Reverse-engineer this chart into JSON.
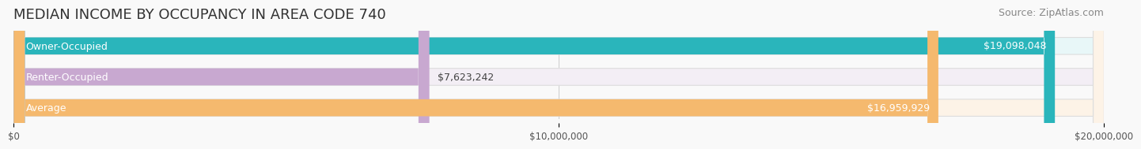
{
  "title": "MEDIAN INCOME BY OCCUPANCY IN AREA CODE 740",
  "source": "Source: ZipAtlas.com",
  "categories": [
    "Owner-Occupied",
    "Renter-Occupied",
    "Average"
  ],
  "values": [
    19098048,
    7623242,
    16959929
  ],
  "labels": [
    "$19,098,048",
    "$7,623,242",
    "$16,959,929"
  ],
  "bar_colors": [
    "#2ab5bb",
    "#c8a8d0",
    "#f5b96e"
  ],
  "bar_bg_colors": [
    "#e8f7f8",
    "#f3eef5",
    "#fdf3e7"
  ],
  "xlim": [
    0,
    20000000
  ],
  "xticks": [
    0,
    10000000,
    20000000
  ],
  "xtick_labels": [
    "$0",
    "$10,000,000",
    "$20,000,000"
  ],
  "title_fontsize": 13,
  "source_fontsize": 9,
  "label_fontsize": 9,
  "category_fontsize": 9,
  "bar_height": 0.55,
  "background_color": "#f9f9f9"
}
